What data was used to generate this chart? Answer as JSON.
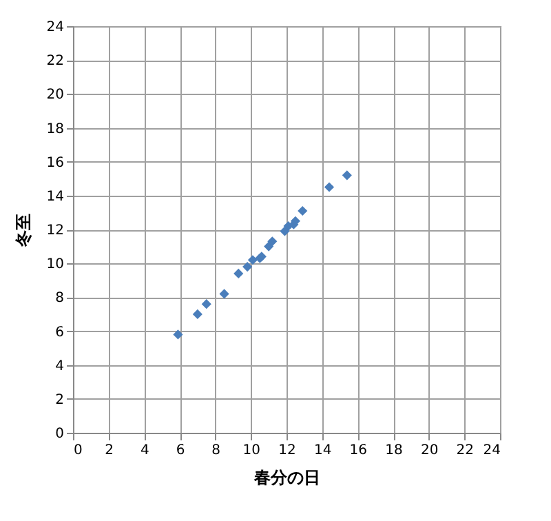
{
  "chart_data": {
    "type": "scatter",
    "xlabel": "春分の日",
    "ylabel": "冬至",
    "x": [
      5.9,
      7.0,
      7.5,
      8.5,
      9.3,
      9.8,
      10.1,
      10.5,
      10.6,
      11.0,
      11.2,
      11.9,
      12.1,
      12.4,
      12.5,
      12.9,
      14.4,
      15.4
    ],
    "series": [
      {
        "color": "#4a7ebb",
        "values": [
          5.8,
          7.0,
          7.6,
          8.2,
          9.4,
          9.8,
          10.2,
          10.3,
          10.4,
          11.0,
          11.3,
          11.9,
          12.2,
          12.3,
          12.5,
          13.1,
          14.5,
          15.2
        ]
      }
    ],
    "xlim": [
      0,
      24
    ],
    "ylim": [
      0,
      24
    ],
    "xticks": [
      0,
      2,
      4,
      6,
      8,
      10,
      12,
      14,
      16,
      18,
      20,
      22,
      24
    ],
    "yticks": [
      0,
      2,
      4,
      6,
      8,
      10,
      12,
      14,
      16,
      18,
      20,
      22,
      24
    ],
    "grid": true,
    "marker": "diamond"
  }
}
